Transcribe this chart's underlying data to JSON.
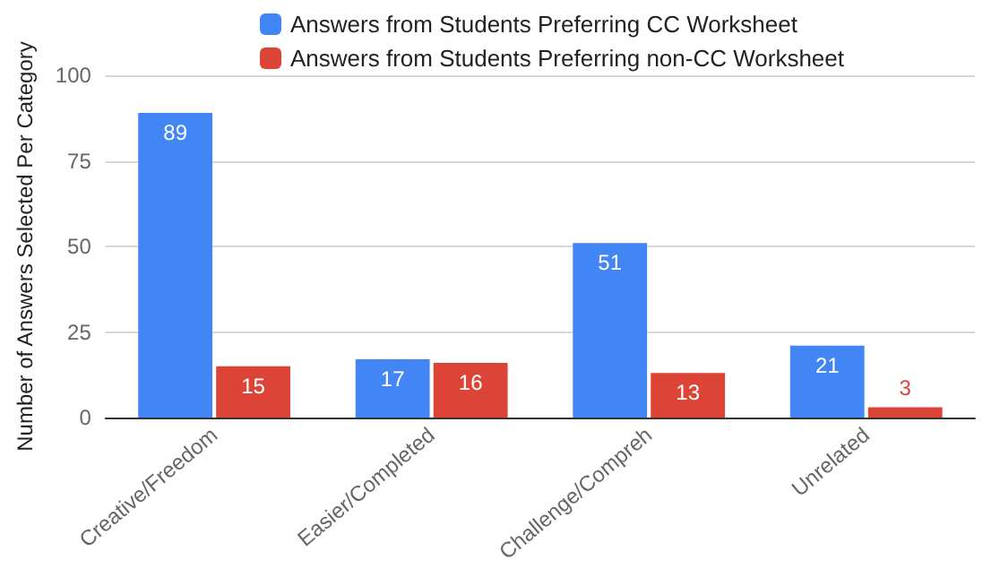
{
  "chart_data": {
    "type": "bar",
    "ylabel": "Number of Answers Selected Per Category",
    "categories": [
      "Creative/Freedom",
      "Easier/Completed",
      "Challenge/Compreh",
      "Unrelated"
    ],
    "series": [
      {
        "name": "Answers from Students Preferring CC Worksheet",
        "color": "#4285f4",
        "values": [
          89,
          17,
          51,
          21
        ]
      },
      {
        "name": "Answers from Students Preferring non-CC Worksheet",
        "color": "#db4437",
        "values": [
          15,
          16,
          13,
          3
        ]
      }
    ],
    "ylim": [
      0,
      100
    ],
    "yticks": [
      0,
      25,
      50,
      75,
      100
    ],
    "grid": "y",
    "legend": "top",
    "data_labels": true
  }
}
